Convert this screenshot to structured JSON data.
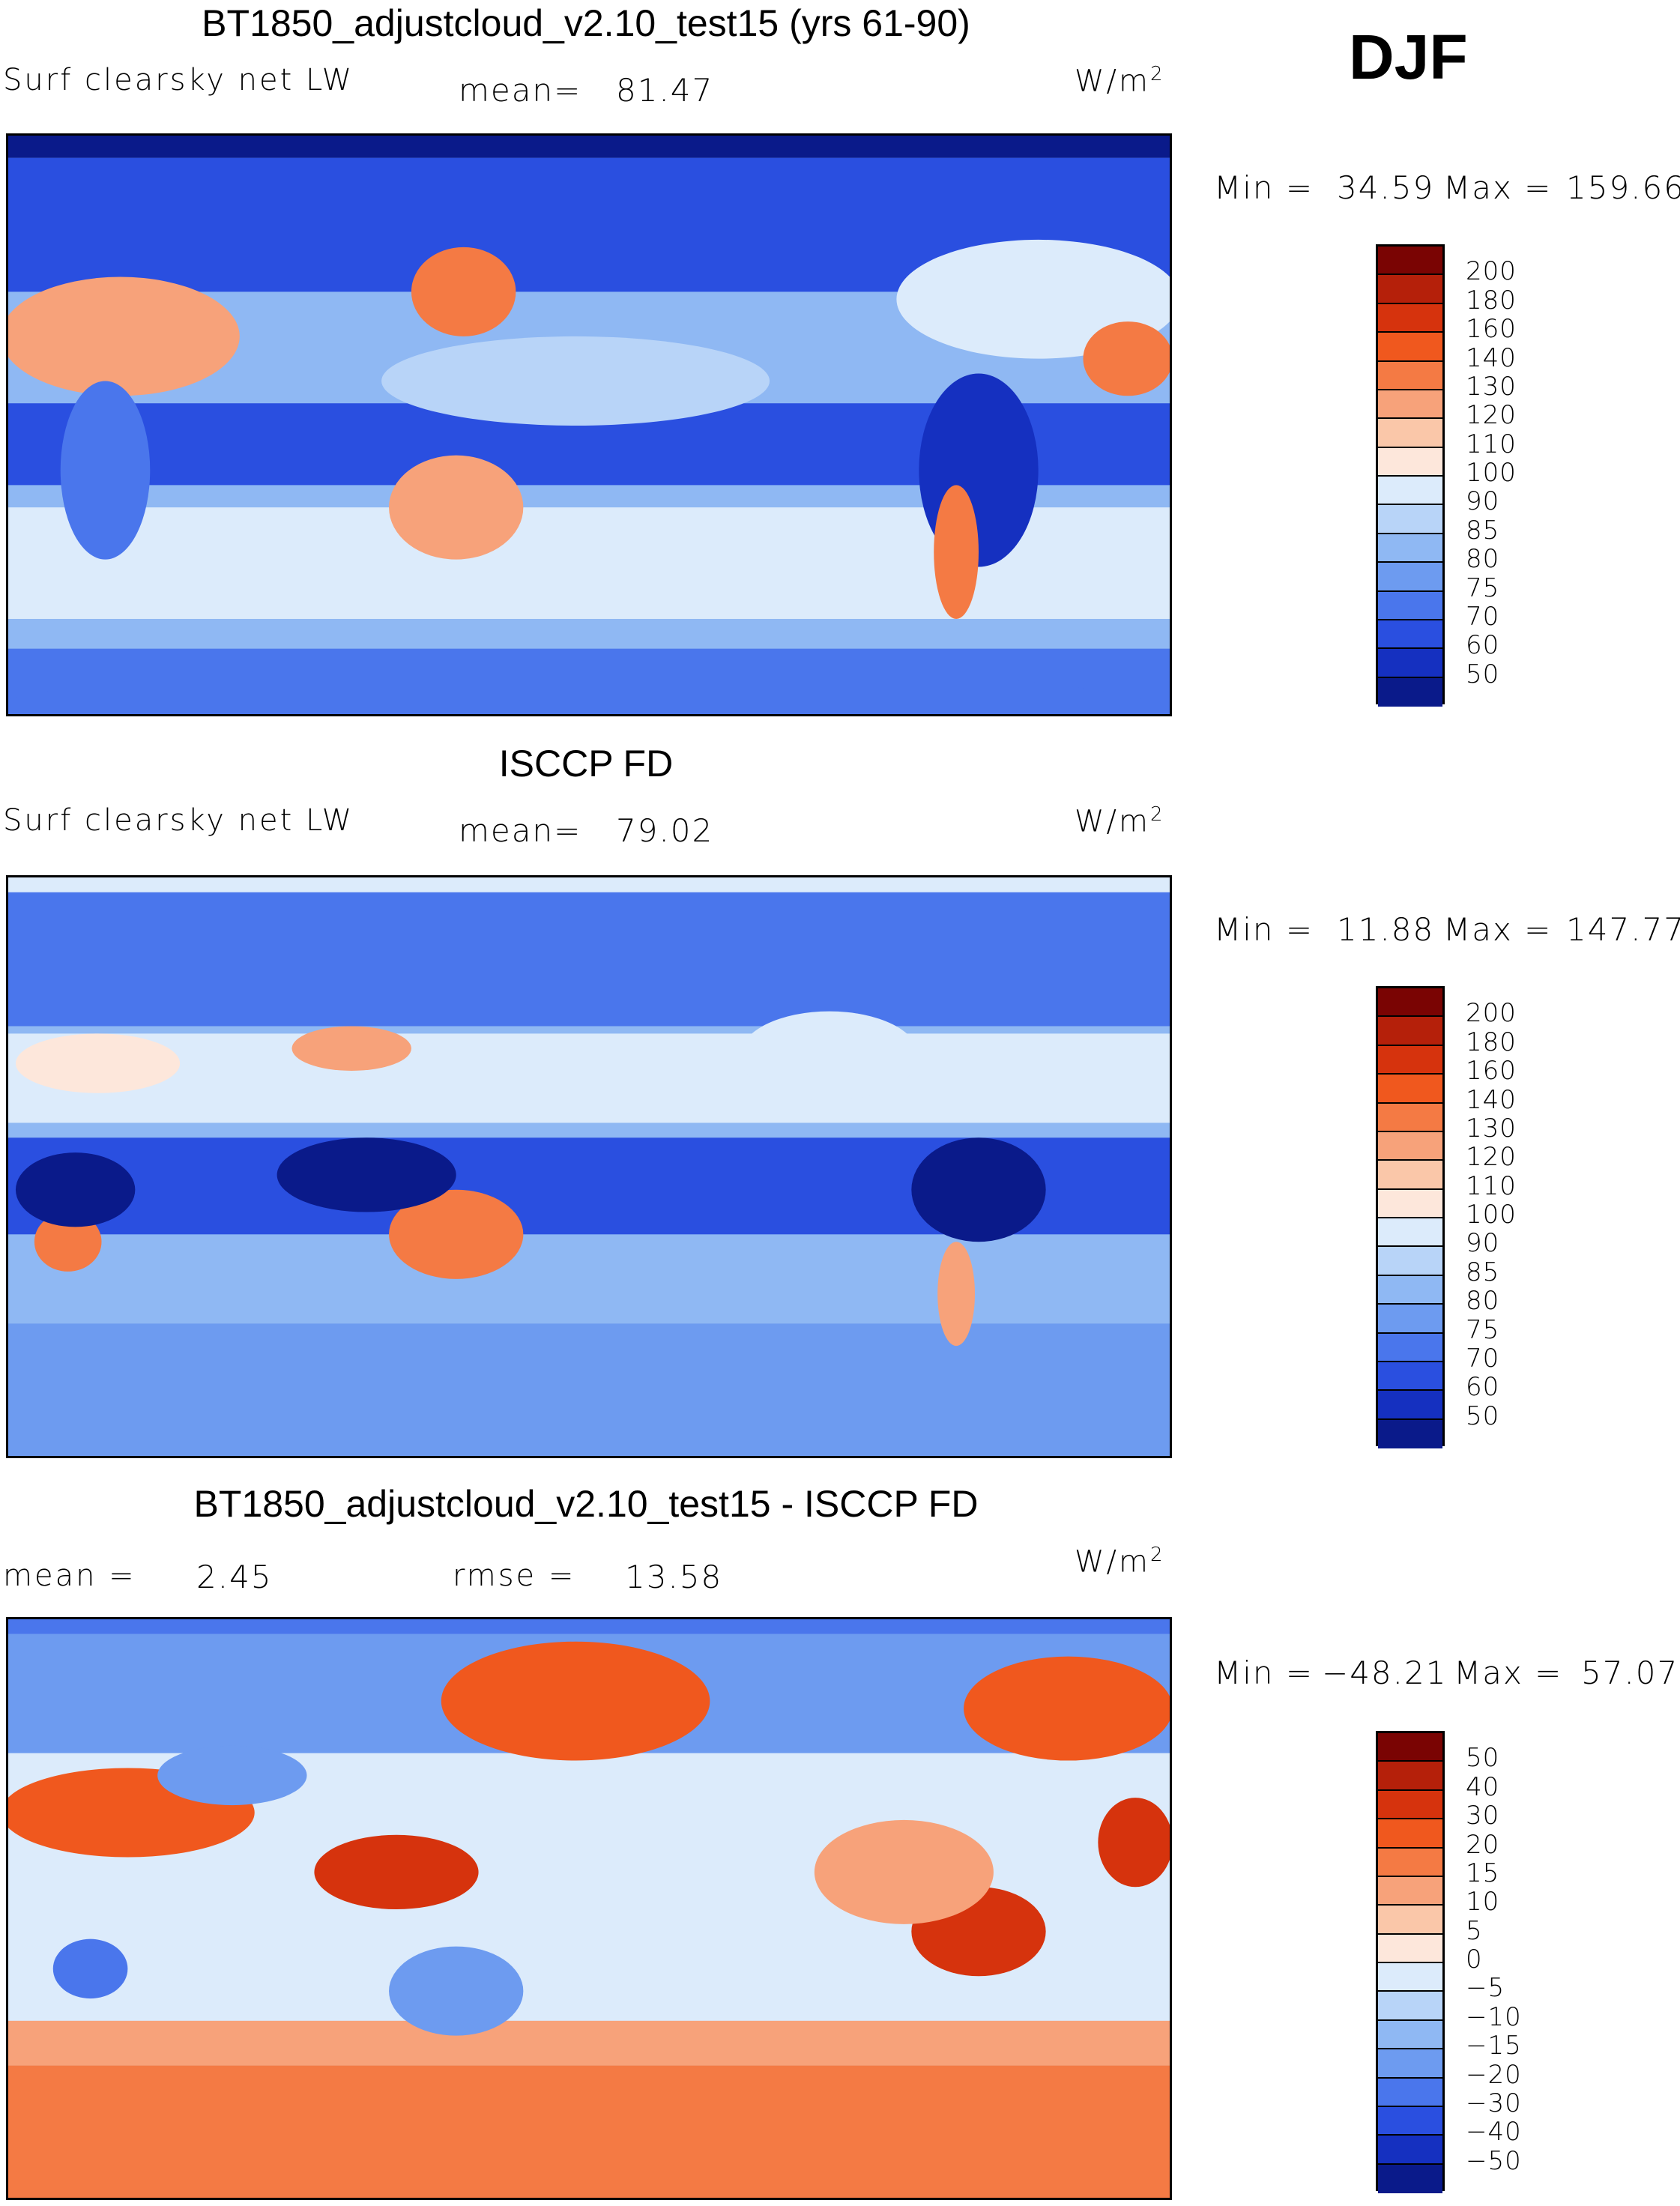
{
  "season": "DJF",
  "units": "W/m",
  "units_exp": "2",
  "panels": [
    {
      "title": "BT1850_adjustcloud_v2.10_test15 (yrs 61-90)",
      "left_label": "Surf clearsky net LW",
      "stat_label": "mean=",
      "stat_value": "81.47",
      "min_label": "Min =",
      "min_value": "34.59",
      "max_label": "Max =",
      "max_value": "159.66"
    },
    {
      "title": "ISCCP FD",
      "left_label": "Surf clearsky net LW",
      "stat_label": "mean=",
      "stat_value": "79.02",
      "min_label": "Min =",
      "min_value": "11.88",
      "max_label": "Max =",
      "max_value": "147.77"
    },
    {
      "title": "BT1850_adjustcloud_v2.10_test15 - ISCCP FD",
      "left_label": "mean =",
      "left_value": "2.45",
      "stat_label": "rmse =",
      "stat_value": "13.58",
      "min_label": "Min =",
      "min_value": "−48.21",
      "max_label": "Max =",
      "max_value": "57.07"
    }
  ],
  "colorbar_abs": {
    "ticks": [
      "200",
      "180",
      "160",
      "140",
      "130",
      "120",
      "110",
      "100",
      "90",
      "85",
      "80",
      "75",
      "70",
      "60",
      "50"
    ],
    "colors": [
      "#7a0403",
      "#b5200a",
      "#d6330d",
      "#f0581e",
      "#f47a44",
      "#f7a27a",
      "#fac7a9",
      "#fde7db",
      "#dcebfb",
      "#b8d4f8",
      "#8fb8f3",
      "#6d9bf0",
      "#4a76ec",
      "#2a4fe0",
      "#1530c0",
      "#0a1a8a"
    ]
  },
  "colorbar_diff": {
    "ticks": [
      "50",
      "40",
      "30",
      "20",
      "15",
      "10",
      "5",
      "0",
      "−5",
      "−10",
      "−15",
      "−20",
      "−30",
      "−40",
      "−50"
    ],
    "colors": [
      "#7a0403",
      "#b5200a",
      "#d6330d",
      "#f0581e",
      "#f47a44",
      "#f7a27a",
      "#fac7a9",
      "#fde7db",
      "#dcebfb",
      "#b8d4f8",
      "#8fb8f3",
      "#6d9bf0",
      "#4a76ec",
      "#2a4fe0",
      "#1530c0",
      "#0a1a8a"
    ]
  },
  "chart_data": [
    {
      "type": "heatmap",
      "title": "BT1850_adjustcloud_v2.10_test15 (yrs 61-90)",
      "variable": "Surf clearsky net LW",
      "units": "W/m^2",
      "season": "DJF",
      "mean": 81.47,
      "min": 34.59,
      "max": 159.66,
      "levels": [
        50,
        60,
        70,
        75,
        80,
        85,
        90,
        100,
        110,
        120,
        130,
        140,
        160,
        180,
        200
      ]
    },
    {
      "type": "heatmap",
      "title": "ISCCP FD",
      "variable": "Surf clearsky net LW",
      "units": "W/m^2",
      "season": "DJF",
      "mean": 79.02,
      "min": 11.88,
      "max": 147.77,
      "levels": [
        50,
        60,
        70,
        75,
        80,
        85,
        90,
        100,
        110,
        120,
        130,
        140,
        160,
        180,
        200
      ]
    },
    {
      "type": "heatmap",
      "title": "BT1850_adjustcloud_v2.10_test15 - ISCCP FD",
      "units": "W/m^2",
      "season": "DJF",
      "mean": 2.45,
      "rmse": 13.58,
      "min": -48.21,
      "max": 57.07,
      "levels": [
        -50,
        -40,
        -30,
        -20,
        -15,
        -10,
        -5,
        0,
        5,
        10,
        15,
        20,
        30,
        40,
        50
      ]
    }
  ]
}
